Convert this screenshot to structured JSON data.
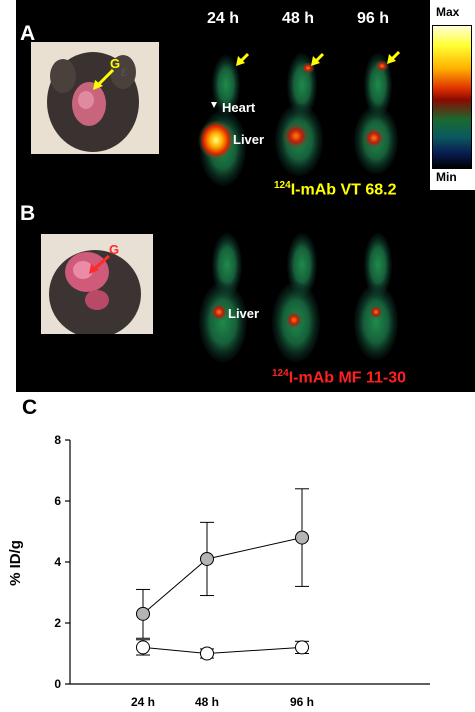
{
  "panel_a": {
    "letter": "A",
    "organ_heart": "Heart",
    "organ_liver": "Liver",
    "caption_sup": "124",
    "caption_text": "I-mAb VT 68.2",
    "photo_mark": "G"
  },
  "panel_b": {
    "letter": "B",
    "organ_liver": "Liver",
    "caption_sup": "124",
    "caption_text": "I-mAb MF 11-30",
    "photo_mark": "G"
  },
  "panel_c": {
    "letter": "C"
  },
  "time_labels": [
    "24 h",
    "48 h",
    "96 h"
  ],
  "colorbar": {
    "max_label": "Max",
    "min_label": "Min"
  },
  "colors": {
    "caption_a": "#ffff00",
    "caption_b": "#ff2020",
    "arrow_a": "#ffff00",
    "arrow_b": "#ff2a2a"
  },
  "chart_data": {
    "type": "line",
    "categories": [
      "24 h",
      "48 h",
      "96 h"
    ],
    "ylabel": "% ID/g",
    "xlabel": "",
    "ylim": [
      0,
      8
    ],
    "yticks": [
      0,
      2,
      4,
      6,
      8
    ],
    "grid": false,
    "series": [
      {
        "marker": "filled-gray",
        "values": [
          2.3,
          4.1,
          4.8
        ],
        "errors": [
          0.8,
          1.2,
          1.6
        ]
      },
      {
        "marker": "open-white",
        "values": [
          1.2,
          1.0,
          1.2
        ],
        "errors": [
          0.25,
          0.15,
          0.2
        ]
      }
    ]
  }
}
